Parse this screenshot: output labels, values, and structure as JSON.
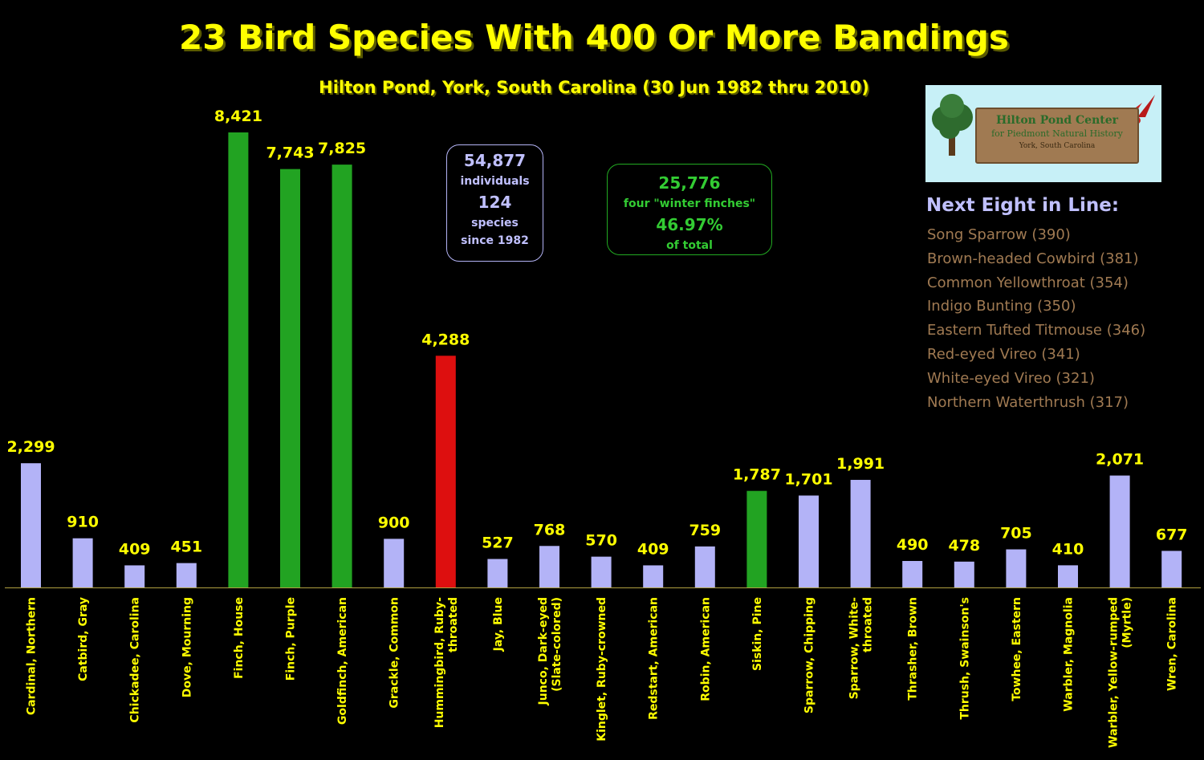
{
  "title": "23 Bird Species With 400 Or More Bandings",
  "subtitle": "Hilton Pond, York, South Carolina (30 Jun 1982 thru 2010)",
  "stats_box": {
    "total": "54,877",
    "total_label": "individuals",
    "species": "124",
    "species_label": "species",
    "since": "since 1982"
  },
  "finch_box": {
    "count": "25,776",
    "label": "four \"winter finches\"",
    "percent": "46.97%",
    "percent_label": "of total"
  },
  "logo": {
    "name": "Hilton Pond Center",
    "tagline": "for Piedmont Natural History",
    "location": "York, South Carolina"
  },
  "next_eight": {
    "heading": "Next Eight in Line:",
    "items": [
      "Song Sparrow (390)",
      "Brown-headed Cowbird (381)",
      "Common Yellowthroat (354)",
      "Indigo Bunting (350)",
      "Eastern Tufted Titmouse (346)",
      "Red-eyed Vireo (341)",
      "White-eyed Vireo (321)",
      "Northern Waterthrush (317)"
    ]
  },
  "colors": {
    "default_bar": "#b3b3f7",
    "finch_bar": "#22a322",
    "hummingbird_bar": "#dd0f0f",
    "label_text": "#ffff00",
    "axis": "#b0a040"
  },
  "chart_data": {
    "type": "bar",
    "title": "23 Bird Species With 400 Or More Bandings",
    "subtitle": "Hilton Pond, York, South Carolina (30 Jun 1982 thru 2010)",
    "ylim": [
      0,
      8421
    ],
    "grid": false,
    "legend": "none",
    "categories": [
      [
        "Cardinal, Northern"
      ],
      [
        "Catbird, Gray"
      ],
      [
        "Chickadee, Carolina"
      ],
      [
        "Dove, Mourning"
      ],
      [
        "Finch, House"
      ],
      [
        "Finch, Purple"
      ],
      [
        "Goldfinch, American"
      ],
      [
        "Grackle, Common"
      ],
      [
        "Hummingbird, Ruby-",
        "throated"
      ],
      [
        "Jay, Blue"
      ],
      [
        "Junco, Dark-eyed",
        "(Slate-colored)"
      ],
      [
        "Kinglet, Ruby-crowned"
      ],
      [
        "Redstart, American"
      ],
      [
        "Robin, American"
      ],
      [
        "Siskin, Pine"
      ],
      [
        "Sparrow, Chipping"
      ],
      [
        "Sparrow, White-",
        "throated"
      ],
      [
        "Thrasher, Brown"
      ],
      [
        "Thrush, Swainson's"
      ],
      [
        "Towhee, Eastern"
      ],
      [
        "Warbler, Magnolia"
      ],
      [
        "Warbler, Yellow-rumped",
        "(Myrtle)"
      ],
      [
        "Wren, Carolina"
      ]
    ],
    "values": [
      2299,
      910,
      409,
      451,
      8421,
      7743,
      7825,
      900,
      4288,
      527,
      768,
      570,
      409,
      759,
      1787,
      1701,
      1991,
      490,
      478,
      705,
      410,
      2071,
      677
    ],
    "value_labels": [
      "2,299",
      "910",
      "409",
      "451",
      "8,421",
      "7,743",
      "7,825",
      "900",
      "4,288",
      "527",
      "768",
      "570",
      "409",
      "759",
      "1,787",
      "1,701",
      "1,991",
      "490",
      "478",
      "705",
      "410",
      "2,071",
      "677"
    ],
    "bar_colors": [
      "default",
      "default",
      "default",
      "default",
      "finch",
      "finch",
      "finch",
      "default",
      "hummingbird",
      "default",
      "default",
      "default",
      "default",
      "default",
      "finch",
      "default",
      "default",
      "default",
      "default",
      "default",
      "default",
      "default",
      "default"
    ]
  }
}
